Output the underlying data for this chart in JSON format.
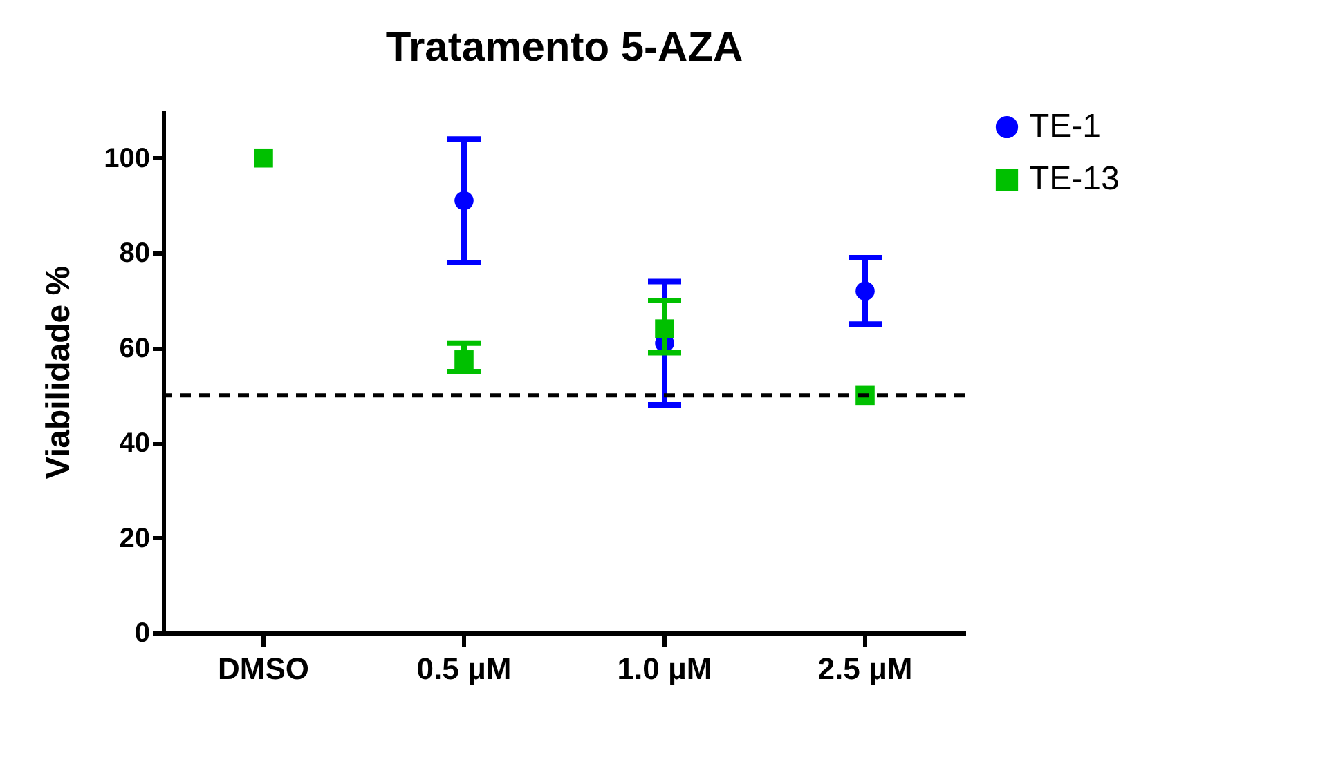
{
  "chart_data": {
    "type": "scatter",
    "title": "Tratamento 5-AZA",
    "ylabel": "Viabilidade %",
    "categories": [
      "DMSO",
      "0.5 μM",
      "1.0 μM",
      "2.5 μM"
    ],
    "series": [
      {
        "name": "TE-1",
        "color": "#0000ff",
        "marker": "circle",
        "values": [
          null,
          91,
          61,
          72
        ],
        "errors": [
          null,
          13,
          13,
          7
        ]
      },
      {
        "name": "TE-13",
        "color": "#00c000",
        "marker": "square",
        "values": [
          100,
          57.5,
          64,
          50
        ],
        "errors": [
          null,
          [
            55,
            61
          ],
          [
            59,
            70
          ],
          null
        ]
      }
    ],
    "ylim": [
      0,
      110
    ],
    "yticks": [
      0,
      20,
      40,
      60,
      80,
      100
    ],
    "ref_lines": [
      {
        "axis": "y",
        "value": 50,
        "color": "#000000",
        "line_style": "dashed"
      }
    ],
    "grid": false,
    "legend": "top right"
  }
}
